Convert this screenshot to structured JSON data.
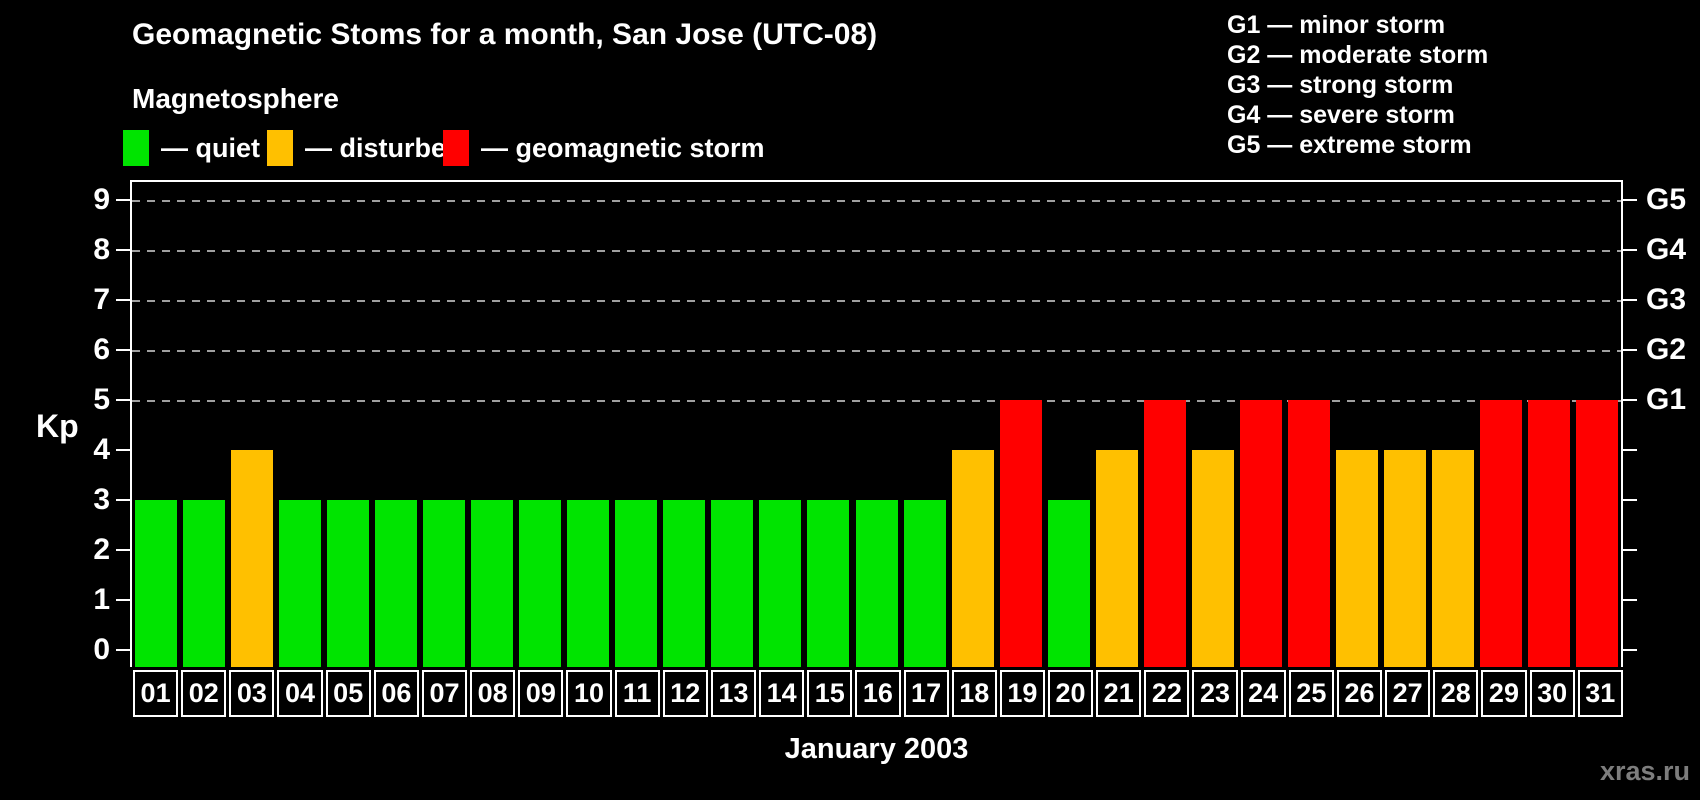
{
  "title": "Geomagnetic Stoms for a month, San Jose (UTC-08)",
  "legend": {
    "heading": "Magnetosphere",
    "items": [
      {
        "key": "quiet",
        "label": "— quiet",
        "color": "#00e400"
      },
      {
        "key": "disturbed",
        "label": "— disturbed",
        "color": "#ffc000"
      },
      {
        "key": "storm",
        "label": "— geomagnetic storm",
        "color": "#ff0000"
      }
    ]
  },
  "gscale_legend": [
    "G1 — minor storm",
    "G2 — moderate storm",
    "G3 — strong storm",
    "G4 — severe storm",
    "G5 — extreme storm"
  ],
  "watermark": "xras.ru",
  "chart_data": {
    "type": "bar",
    "title": "Geomagnetic Stoms for a month, San Jose (UTC-08)",
    "xlabel": "January 2003",
    "ylabel": "Kp",
    "ylim": [
      0,
      9
    ],
    "yticks": [
      0,
      1,
      2,
      3,
      4,
      5,
      6,
      7,
      8,
      9
    ],
    "gridlines_at": [
      5,
      6,
      7,
      8,
      9
    ],
    "grid": "dashed-horizontal",
    "legend_position": "top-left",
    "right_axis": [
      {
        "value": 5,
        "label": "G1"
      },
      {
        "value": 6,
        "label": "G2"
      },
      {
        "value": 7,
        "label": "G3"
      },
      {
        "value": 8,
        "label": "G4"
      },
      {
        "value": 9,
        "label": "G5"
      }
    ],
    "categories": [
      "01",
      "02",
      "03",
      "04",
      "05",
      "06",
      "07",
      "08",
      "09",
      "10",
      "11",
      "12",
      "13",
      "14",
      "15",
      "16",
      "17",
      "18",
      "19",
      "20",
      "21",
      "22",
      "23",
      "24",
      "25",
      "26",
      "27",
      "28",
      "29",
      "30",
      "31"
    ],
    "values": [
      3,
      3,
      4,
      3,
      3,
      3,
      3,
      3,
      3,
      3,
      3,
      3,
      3,
      3,
      3,
      3,
      3,
      4,
      5,
      3,
      4,
      5,
      4,
      5,
      5,
      4,
      4,
      4,
      5,
      5,
      5
    ],
    "statuses": [
      "quiet",
      "quiet",
      "disturbed",
      "quiet",
      "quiet",
      "quiet",
      "quiet",
      "quiet",
      "quiet",
      "quiet",
      "quiet",
      "quiet",
      "quiet",
      "quiet",
      "quiet",
      "quiet",
      "quiet",
      "disturbed",
      "storm",
      "quiet",
      "disturbed",
      "storm",
      "disturbed",
      "storm",
      "storm",
      "disturbed",
      "disturbed",
      "disturbed",
      "storm",
      "storm",
      "storm"
    ],
    "colors": {
      "quiet": "#00e400",
      "disturbed": "#ffc000",
      "storm": "#ff0000"
    }
  }
}
